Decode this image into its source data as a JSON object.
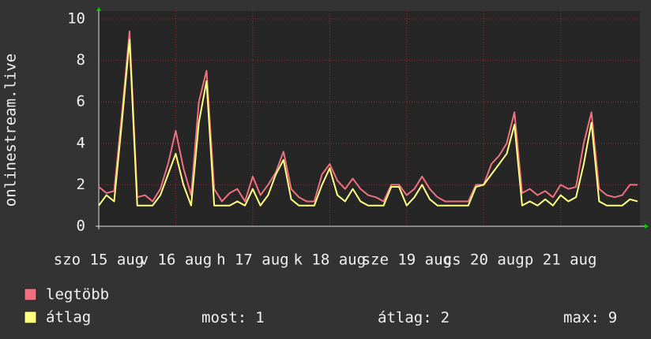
{
  "chart_data": {
    "type": "line",
    "y_label": "onlinestream.live",
    "xlim": [
      0,
      7.03
    ],
    "xticks": [
      {
        "value": 0,
        "label": "szo 15 aug"
      },
      {
        "value": 1,
        "label": "v 16 aug"
      },
      {
        "value": 2,
        "label": "h 17 aug"
      },
      {
        "value": 3,
        "label": "k 18 aug"
      },
      {
        "value": 4,
        "label": "sze 19 aug"
      },
      {
        "value": 5,
        "label": "cs 20 aug"
      },
      {
        "value": 6,
        "label": "p 21 aug"
      }
    ],
    "ylim": [
      0,
      10
    ],
    "yticks": [
      0,
      2,
      4,
      6,
      8,
      10
    ],
    "grid": true,
    "x": [
      0,
      0.1,
      0.2,
      0.3,
      0.4,
      0.5,
      0.6,
      0.7,
      0.8,
      0.9,
      1,
      1.1,
      1.2,
      1.3,
      1.4,
      1.5,
      1.6,
      1.7,
      1.8,
      1.9,
      2,
      2.1,
      2.2,
      2.3,
      2.4,
      2.5,
      2.6,
      2.7,
      2.8,
      2.9,
      3,
      3.1,
      3.2,
      3.3,
      3.4,
      3.5,
      3.6,
      3.7,
      3.8,
      3.9,
      4,
      4.1,
      4.2,
      4.3,
      4.4,
      4.5,
      4.6,
      4.7,
      4.8,
      4.9,
      5,
      5.1,
      5.2,
      5.3,
      5.4,
      5.5,
      5.6,
      5.7,
      5.8,
      5.9,
      6,
      6.1,
      6.2,
      6.3,
      6.4,
      6.5,
      6.6,
      6.7,
      6.8,
      6.9,
      7
    ],
    "series": [
      {
        "name": "legtöbb",
        "color": "#f07080",
        "values": [
          1.9,
          1.6,
          1.7,
          5.4,
          9.4,
          1.4,
          1.5,
          1.2,
          1.8,
          3,
          4.6,
          2.8,
          1.5,
          6,
          7.5,
          1.8,
          1.2,
          1.6,
          1.8,
          1.2,
          2.4,
          1.5,
          2,
          2.6,
          3.6,
          1.8,
          1.4,
          1.2,
          1.2,
          2.5,
          3,
          2.2,
          1.8,
          2.3,
          1.8,
          1.5,
          1.4,
          1.2,
          2,
          2,
          1.5,
          1.8,
          2.4,
          1.8,
          1.4,
          1.2,
          1.2,
          1.2,
          1.2,
          2,
          2,
          3,
          3.4,
          4,
          5.5,
          1.6,
          1.8,
          1.5,
          1.7,
          1.4,
          2,
          1.8,
          1.9,
          4,
          5.5,
          1.8,
          1.5,
          1.4,
          1.5,
          2,
          2
        ]
      },
      {
        "name": "átlag",
        "color": "#ffff80",
        "values": [
          1,
          1.5,
          1.2,
          5,
          9,
          1,
          1,
          1,
          1.5,
          2.5,
          3.5,
          2,
          1,
          5,
          7,
          1,
          1,
          1,
          1.2,
          1,
          1.8,
          1,
          1.5,
          2.5,
          3.2,
          1.3,
          1,
          1,
          1,
          2,
          2.8,
          1.5,
          1.2,
          1.8,
          1.2,
          1,
          1,
          1,
          1.9,
          1.9,
          1,
          1.4,
          2,
          1.3,
          1,
          1,
          1,
          1,
          1,
          1.9,
          2,
          2.5,
          3,
          3.5,
          4.9,
          1,
          1.2,
          1,
          1.3,
          1,
          1.5,
          1.2,
          1.4,
          3,
          5,
          1.2,
          1,
          1,
          1,
          1.3,
          1.2
        ]
      }
    ],
    "stats": [
      {
        "label": "most:",
        "value": 1
      },
      {
        "label": "átlag:",
        "value": 2
      },
      {
        "label": "max:",
        "value": 9
      }
    ]
  }
}
